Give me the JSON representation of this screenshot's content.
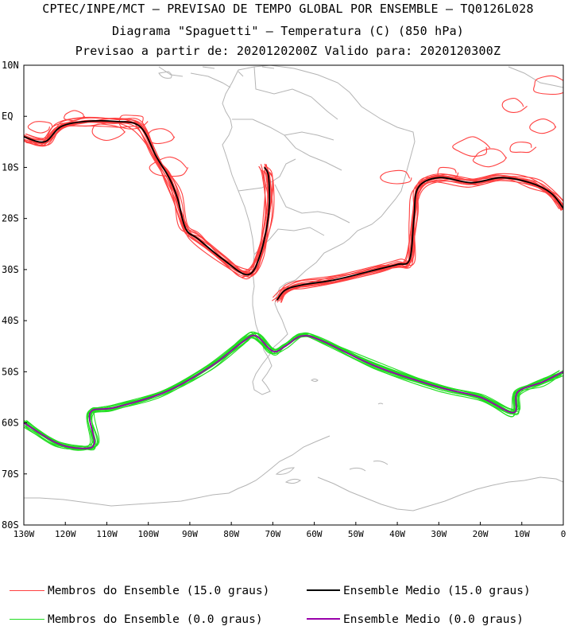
{
  "title": {
    "line1": "CPTEC/INPE/MCT – PREVISAO DE TEMPO GLOBAL POR ENSEMBLE – TQ0126L028",
    "line2": "Diagrama \"Spaguetti\" – Temperatura (C) (850 hPa)",
    "line3": "Previsao a partir de: 2020120200Z  Valido para: 2020120300Z"
  },
  "axes": {
    "lat_labels": [
      "10N",
      "EQ",
      "10S",
      "20S",
      "30S",
      "40S",
      "50S",
      "60S",
      "70S",
      "80S"
    ],
    "lon_labels": [
      "130W",
      "120W",
      "110W",
      "100W",
      "90W",
      "80W",
      "70W",
      "60W",
      "50W",
      "40W",
      "30W",
      "20W",
      "10W",
      "0"
    ]
  },
  "legend": {
    "members_15": "Membros do Ensemble (15.0 graus)",
    "mean_15": "Ensemble Medio (15.0 graus)",
    "members_0": "Membros do Ensemble (0.0 graus)",
    "mean_0": "Ensemble Medio (0.0 graus)"
  },
  "colors": {
    "members_15": "#ff4040",
    "mean_15": "#000000",
    "members_0": "#22dd22",
    "mean_0": "#9900aa",
    "coast": "#b4b4b4"
  },
  "chart_data": {
    "type": "map",
    "region": {
      "lon_range": [
        -130,
        0
      ],
      "lat_range": [
        -80,
        10
      ]
    },
    "ensemble_mean_15C": {
      "contour_C": 15.0,
      "lon": [
        -130,
        -125,
        -121,
        -115,
        -108,
        -102,
        -98,
        -95,
        -93,
        -91,
        -88,
        -82,
        -76,
        -73,
        -71,
        -71,
        -72
      ],
      "lat": [
        -4,
        -5,
        -2,
        -1,
        -1,
        -2,
        -8,
        -12,
        -16,
        -22,
        -24,
        -28,
        -31,
        -27,
        -19,
        -12,
        -10
      ]
    },
    "ensemble_mean_0C": {
      "contour_C": 0.0,
      "lon": [
        -130,
        -122,
        -116,
        -113,
        -114,
        -108,
        -96,
        -85,
        -77,
        -74,
        -70,
        -67,
        -63,
        -58,
        -45,
        -30,
        -20,
        -12,
        -11,
        -5,
        0
      ],
      "lat": [
        -60,
        -64,
        -65,
        -64,
        -58,
        -57,
        -54,
        -49,
        -44,
        -43,
        -46,
        -45,
        -43,
        -44,
        -49,
        -53,
        -55,
        -58,
        -54,
        -52,
        -50
      ]
    }
  }
}
